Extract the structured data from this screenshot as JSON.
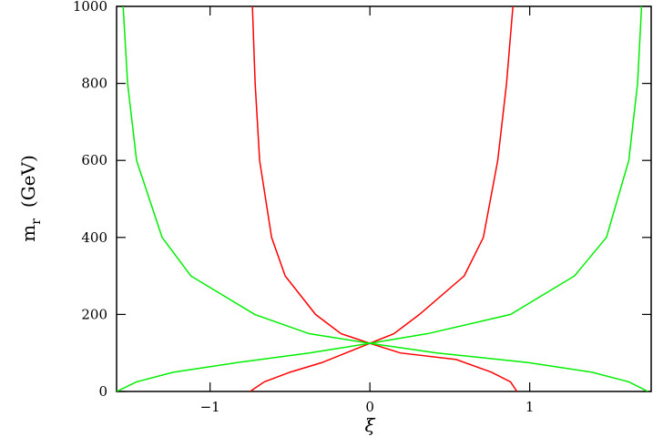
{
  "chart_data": {
    "type": "line",
    "xlabel": "ξ",
    "ylabel": {
      "main": "m",
      "sub": "r",
      "unit": "(GeV)"
    },
    "xlim": [
      -1.585,
      1.76
    ],
    "ylim": [
      0,
      1000
    ],
    "xticks": [
      {
        "value": -1,
        "label": "−1"
      },
      0,
      1
    ],
    "yticks": [
      0,
      200,
      400,
      600,
      800,
      1000
    ],
    "series": [
      {
        "color": "#ff0000",
        "x": [
          -0.735,
          -0.718,
          -0.69,
          -0.615,
          -0.53,
          -0.34,
          -0.18,
          0,
          0.19,
          0.54,
          0.76,
          0.88,
          0.92
        ],
        "values": [
          1000,
          800,
          600,
          400,
          300,
          200,
          150,
          125,
          100,
          83,
          50,
          25,
          0
        ]
      },
      {
        "color": "#ff0000",
        "x": [
          -0.75,
          -0.66,
          -0.5,
          -0.3,
          -0.15,
          0,
          0.15,
          0.31,
          0.59,
          0.71,
          0.8,
          0.855,
          0.895
        ],
        "values": [
          0,
          25,
          50,
          75,
          100,
          125,
          150,
          200,
          300,
          400,
          600,
          800,
          1000
        ]
      },
      {
        "color": "#00ee00",
        "x": [
          -1.544,
          -1.516,
          -1.46,
          -1.3,
          -1.12,
          -0.72,
          -0.38,
          0,
          0.42,
          0.99,
          1.39,
          1.62,
          1.74
        ],
        "values": [
          1000,
          800,
          600,
          400,
          300,
          200,
          150,
          125,
          100,
          75,
          50,
          25,
          0
        ]
      },
      {
        "color": "#00ee00",
        "x": [
          -1.584,
          -1.46,
          -1.23,
          -0.83,
          -0.38,
          0,
          0.36,
          0.88,
          1.28,
          1.48,
          1.62,
          1.675,
          1.7
        ],
        "values": [
          0,
          25,
          50,
          75,
          100,
          125,
          150,
          200,
          300,
          400,
          600,
          800,
          1000
        ]
      }
    ]
  }
}
